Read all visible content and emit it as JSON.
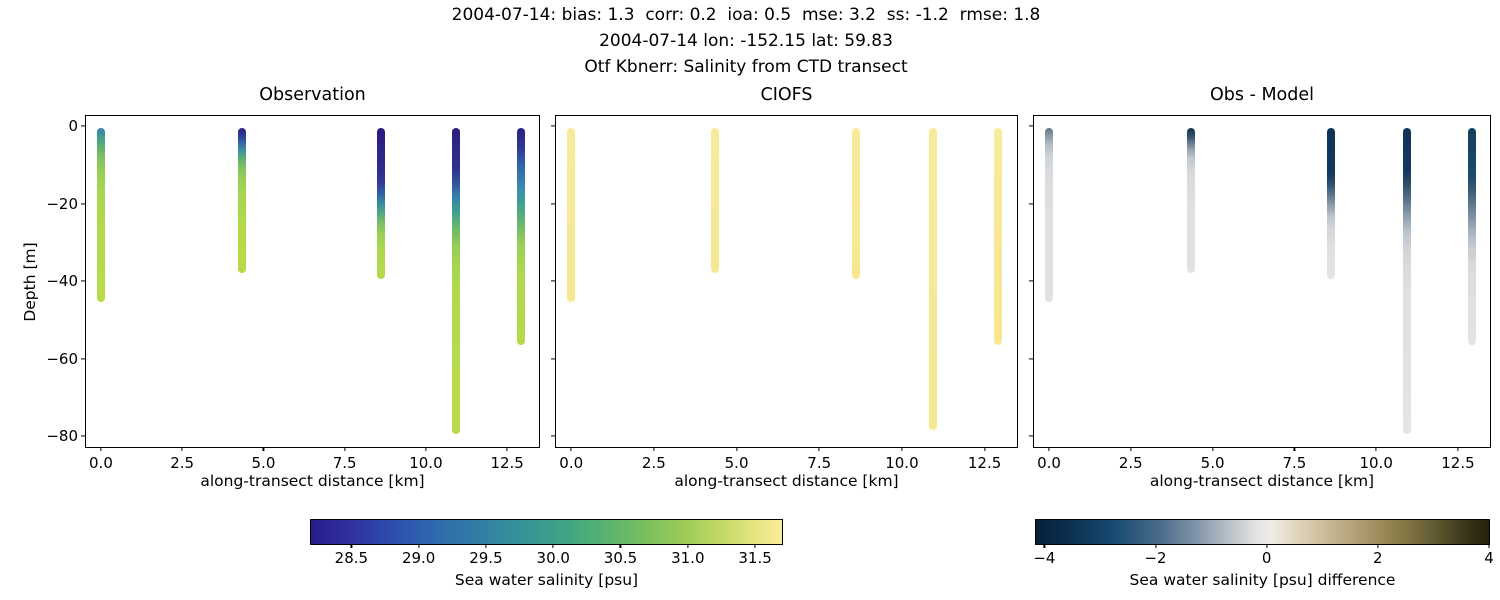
{
  "header": {
    "stats_line": "2004-07-14: bias: 1.3  corr: 0.2  ioa: 0.5  mse: 3.2  ss: -1.2  rmse: 1.8",
    "location_line": "2004-07-14 lon: -152.15 lat: 59.83",
    "title_line": "Otf Kbnerr: Salinity from CTD transect"
  },
  "axes": {
    "xlabel": "along-transect distance [km]",
    "ylabel": "Depth [m]",
    "xlim": [
      -0.46,
      13.48
    ],
    "ylim_top": 2.6,
    "ylim_bottom": -82.8,
    "xtick_values": [
      0,
      2.5,
      5,
      7.5,
      10,
      12.5
    ],
    "xtick_labels": [
      "0.0",
      "2.5",
      "5.0",
      "7.5",
      "10.0",
      "12.5"
    ],
    "ytick_values": [
      0,
      -20,
      -40,
      -60,
      -80
    ],
    "ytick_labels": [
      "0",
      "−20",
      "−40",
      "−60",
      "−80"
    ]
  },
  "panels": [
    {
      "title": "Observation",
      "show_ytick_labels": true
    },
    {
      "title": "CIOFS",
      "show_ytick_labels": false
    },
    {
      "title": "Obs - Model",
      "show_ytick_labels": false
    }
  ],
  "colorbars": [
    {
      "label": "Sea water salinity [psu]",
      "colormap": "haline",
      "vmin": 28.2,
      "vmax": 31.7,
      "tick_values": [
        28.5,
        29.0,
        29.5,
        30.0,
        30.5,
        31.0,
        31.5
      ],
      "tick_labels": [
        "28.5",
        "29.0",
        "29.5",
        "30.0",
        "30.5",
        "31.0",
        "31.5"
      ],
      "gradient": [
        "#2a1c8a 0%",
        "#2d2d9e 7%",
        "#2e49ae 16%",
        "#2f62b0 24%",
        "#2f79a8 33%",
        "#348d9b 42%",
        "#3b9e8b 51%",
        "#52b073 61%",
        "#76bd60 70%",
        "#9ccb56 79%",
        "#c3d866 87%",
        "#e4e57f 94%",
        "#f8ec99 100%"
      ]
    },
    {
      "label": "Sea water salinity [psu] difference",
      "colormap": "diff",
      "vmin": -4.15,
      "vmax": 4.0,
      "tick_values": [
        -4,
        -2,
        0,
        2,
        4
      ],
      "tick_labels": [
        "−4",
        "−2",
        "0",
        "2",
        "4"
      ],
      "gradient": [
        "#072138 0%",
        "#0c3152 8%",
        "#164a70 17%",
        "#486a8b 27%",
        "#7e92a6 35%",
        "#b4bdc6 42%",
        "#e6e5e3 49%",
        "#f0ede4 52%",
        "#ded3bb 58%",
        "#c3b38e 66%",
        "#a28f5e 75%",
        "#7c6f40 83%",
        "#55502a 90%",
        "#352f16 96%",
        "#23230f 100%"
      ]
    }
  ],
  "chart_data": {
    "type": "scatter",
    "description": "CTD transect salinity profiles at 5 stations: observed (left), CIOFS model (middle), observation minus model difference (right).",
    "suptitle_lines": [
      "2004-07-14: bias: 1.3  corr: 0.2  ioa: 0.5  mse: 3.2  ss: -1.2  rmse: 1.8",
      "2004-07-14 lon: -152.15 lat: 59.83",
      "Otf Kbnerr: Salinity from CTD transect"
    ],
    "stats": {
      "date": "2004-07-14",
      "bias": 1.3,
      "corr": 0.2,
      "ioa": 0.5,
      "mse": 3.2,
      "ss": -1.2,
      "rmse": 1.8
    },
    "location": {
      "date": "2004-07-14",
      "lon": -152.15,
      "lat": 59.83
    },
    "xlabel": "along-transect distance [km]",
    "ylabel": "Depth [m]",
    "x_range_km": [
      -0.46,
      13.48
    ],
    "depth_range_m": [
      2.6,
      -82.8
    ],
    "station_x_km": [
      0.0,
      4.35,
      8.62,
      10.93,
      12.92
    ],
    "model_salinity_psu_approx": 31.6,
    "panels": [
      {
        "name": "Observation",
        "columns": [
          {
            "x_km": 0.0,
            "top_m": -0.5,
            "bottom_m": -45.5,
            "profile_depth_value": [
              [
                -1,
                29.5
              ],
              [
                -3,
                30.3
              ],
              [
                -6,
                30.7
              ],
              [
                -10,
                31.0
              ],
              [
                -20,
                31.2
              ],
              [
                -45,
                31.3
              ]
            ],
            "gradient": [
              "#3c7eb2 0%",
              "#3d9897 4%",
              "#55ab78 9%",
              "#7cbf63 16%",
              "#97cd58 25%",
              "#a9d64f 38%",
              "#b3da4b 60%",
              "#b6da4a 100%"
            ]
          },
          {
            "x_km": 4.35,
            "top_m": -0.5,
            "bottom_m": -38.0,
            "profile_depth_value": [
              [
                -1,
                28.5
              ],
              [
                -3,
                28.9
              ],
              [
                -5,
                29.8
              ],
              [
                -7,
                30.4
              ],
              [
                -10,
                30.8
              ],
              [
                -15,
                31.1
              ],
              [
                -38,
                31.3
              ]
            ],
            "gradient": [
              "#2c2082 0%",
              "#2e3b95 5%",
              "#3366a7 10%",
              "#3c9598 16%",
              "#64b36f 22%",
              "#8cc75c 30%",
              "#a3d453 42%",
              "#b4da4b 70%",
              "#b6da4a 100%"
            ]
          },
          {
            "x_km": 8.62,
            "top_m": -0.5,
            "bottom_m": -39.5,
            "profile_depth_value": [
              [
                -1,
                28.4
              ],
              [
                -8,
                28.5
              ],
              [
                -12,
                28.7
              ],
              [
                -16,
                29.3
              ],
              [
                -19,
                29.9
              ],
              [
                -22,
                30.4
              ],
              [
                -26,
                30.8
              ],
              [
                -39,
                31.2
              ]
            ],
            "gradient": [
              "#2b1b7e 0%",
              "#2f2d8c 28%",
              "#333b96 36%",
              "#2f5fa5 43%",
              "#3a8ba2 50%",
              "#4da585 56%",
              "#75bc67 62%",
              "#98cf58 70%",
              "#aed84e 82%",
              "#b6da4a 100%"
            ]
          },
          {
            "x_km": 10.93,
            "top_m": -0.5,
            "bottom_m": -79.5,
            "profile_depth_value": [
              [
                -1,
                28.4
              ],
              [
                -8,
                28.6
              ],
              [
                -12,
                28.9
              ],
              [
                -15,
                29.5
              ],
              [
                -19,
                30.1
              ],
              [
                -24,
                30.6
              ],
              [
                -30,
                31.0
              ],
              [
                -79,
                31.3
              ]
            ],
            "gradient": [
              "#2b1b7e 0%",
              "#30308e 13%",
              "#315397 18%",
              "#3784a9 23%",
              "#42a18c 28%",
              "#6cb86b 33%",
              "#93cc5a 38%",
              "#a9d650 46%",
              "#b4da4b 60%",
              "#b7da4a 100%"
            ]
          },
          {
            "x_km": 12.92,
            "top_m": -0.5,
            "bottom_m": -56.5,
            "profile_depth_value": [
              [
                -1,
                28.5
              ],
              [
                -5,
                28.8
              ],
              [
                -10,
                29.2
              ],
              [
                -15,
                29.6
              ],
              [
                -20,
                29.9
              ],
              [
                -25,
                30.4
              ],
              [
                -30,
                30.9
              ],
              [
                -56,
                31.3
              ]
            ],
            "gradient": [
              "#2c1f82 0%",
              "#2e3d96 10%",
              "#3367a9 18%",
              "#3a8bad 27%",
              "#3d9e96 34%",
              "#5bae76 41%",
              "#81c262 48%",
              "#9ed254 56%",
              "#b0d94d 68%",
              "#b6da4a 100%"
            ]
          }
        ]
      },
      {
        "name": "CIOFS",
        "columns": [
          {
            "x_km": 0.0,
            "top_m": -0.5,
            "bottom_m": -45.5,
            "profile_depth_value": [
              [
                -1,
                31.6
              ],
              [
                -45,
                31.6
              ]
            ],
            "gradient": [
              "#f8ea9c 0%",
              "#f7e792 100%"
            ]
          },
          {
            "x_km": 4.35,
            "top_m": -0.5,
            "bottom_m": -38.0,
            "profile_depth_value": [
              [
                -1,
                31.6
              ],
              [
                -38,
                31.6
              ]
            ],
            "gradient": [
              "#f8ea9c 0%",
              "#f7e792 100%"
            ]
          },
          {
            "x_km": 8.62,
            "top_m": -0.5,
            "bottom_m": -39.5,
            "profile_depth_value": [
              [
                -1,
                31.6
              ],
              [
                -39,
                31.6
              ]
            ],
            "gradient": [
              "#f8ea9c 0%",
              "#f7e792 100%"
            ]
          },
          {
            "x_km": 10.93,
            "top_m": -0.5,
            "bottom_m": -78.5,
            "profile_depth_value": [
              [
                -1,
                31.6
              ],
              [
                -78,
                31.6
              ]
            ],
            "gradient": [
              "#f8ea9c 0%",
              "#f7e792 100%"
            ]
          },
          {
            "x_km": 12.92,
            "top_m": -0.5,
            "bottom_m": -56.5,
            "profile_depth_value": [
              [
                -1,
                31.6
              ],
              [
                -56,
                31.6
              ]
            ],
            "gradient": [
              "#f8ea9c 0%",
              "#f7e792 100%"
            ]
          }
        ]
      },
      {
        "name": "Obs - Model",
        "columns": [
          {
            "x_km": 0.0,
            "top_m": -0.5,
            "bottom_m": -45.5,
            "profile_depth_value": [
              [
                -1,
                -2.1
              ],
              [
                -3,
                -1.3
              ],
              [
                -6,
                -0.9
              ],
              [
                -10,
                -0.6
              ],
              [
                -45,
                -0.3
              ]
            ],
            "gradient": [
              "#5f7787 0%",
              "#8795a4 4%",
              "#b0b9c2 9%",
              "#cdd2d7 16%",
              "#d9dcdf 26%",
              "#dee0e2 50%",
              "#e1e2e3 100%"
            ]
          },
          {
            "x_km": 4.35,
            "top_m": -0.5,
            "bottom_m": -38.0,
            "profile_depth_value": [
              [
                -1,
                -3.1
              ],
              [
                -3,
                -2.7
              ],
              [
                -5,
                -1.8
              ],
              [
                -7,
                -1.2
              ],
              [
                -10,
                -0.8
              ],
              [
                -38,
                -0.3
              ]
            ],
            "gradient": [
              "#123450 0%",
              "#33536f 6%",
              "#64798f 10%",
              "#98a4b2 15%",
              "#c2c9d0 21%",
              "#d6d9dc 30%",
              "#dfe0e2 55%",
              "#e1e2e3 100%"
            ]
          },
          {
            "x_km": 8.62,
            "top_m": -0.5,
            "bottom_m": -39.5,
            "profile_depth_value": [
              [
                -1,
                -3.2
              ],
              [
                -12,
                -2.9
              ],
              [
                -16,
                -2.3
              ],
              [
                -19,
                -1.7
              ],
              [
                -22,
                -1.2
              ],
              [
                -26,
                -0.8
              ],
              [
                -39,
                -0.4
              ]
            ],
            "gradient": [
              "#0e3458 0%",
              "#123a5e 30%",
              "#315471 38%",
              "#5f7b92 45%",
              "#92a1b1 52%",
              "#bec6cd 59%",
              "#d5d8db 67%",
              "#dfe1e2 82%",
              "#e2e3e4 100%"
            ]
          },
          {
            "x_km": 10.93,
            "top_m": -0.5,
            "bottom_m": -79.5,
            "profile_depth_value": [
              [
                -1,
                -3.2
              ],
              [
                -12,
                -2.7
              ],
              [
                -15,
                -2.1
              ],
              [
                -19,
                -1.5
              ],
              [
                -24,
                -1.0
              ],
              [
                -30,
                -0.6
              ],
              [
                -79,
                -0.3
              ]
            ],
            "gradient": [
              "#0e3357 0%",
              "#123a5e 14%",
              "#2f516e 19%",
              "#5d7890 24%",
              "#90a0b0 29%",
              "#bcc4cc 34%",
              "#d4d7da 41%",
              "#dfe1e2 55%",
              "#e4e5e5 100%"
            ]
          },
          {
            "x_km": 12.92,
            "top_m": -0.5,
            "bottom_m": -56.5,
            "profile_depth_value": [
              [
                -1,
                -3.1
              ],
              [
                -10,
                -2.4
              ],
              [
                -15,
                -2.0
              ],
              [
                -20,
                -1.7
              ],
              [
                -25,
                -1.2
              ],
              [
                -30,
                -0.7
              ],
              [
                -56,
                -0.3
              ]
            ],
            "gradient": [
              "#16405f 0%",
              "#1d4a6b 22%",
              "#40617e 30%",
              "#74899c 39%",
              "#a3aeba 47%",
              "#c8cdd3 55%",
              "#d9dbde 65%",
              "#e1e2e3 85%",
              "#e2e3e4 100%"
            ]
          }
        ]
      }
    ],
    "colorbar_labels": [
      "Sea water salinity [psu]",
      "Sea water salinity [psu] difference"
    ]
  }
}
